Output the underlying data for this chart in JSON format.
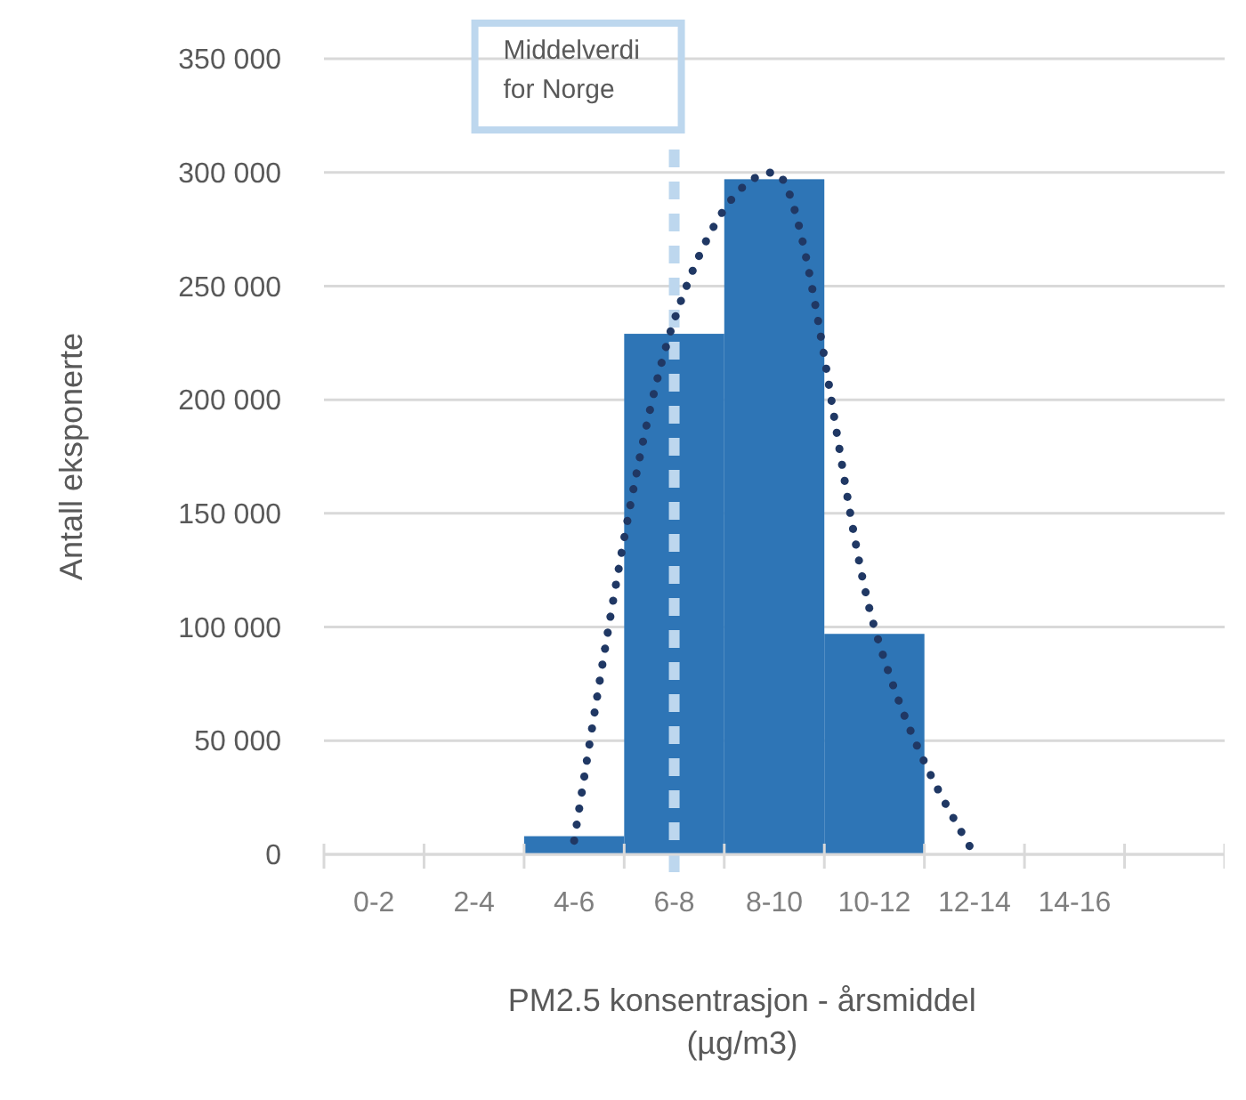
{
  "chart_data": {
    "type": "bar",
    "xlabel": "PM2.5 konsentrasjon - årsmiddel\n(µg/m3)",
    "ylabel": "Antall eksponerte",
    "categories": [
      "0-2",
      "2-4",
      "4-6",
      "6-8",
      "8-10",
      "10-12",
      "12-14",
      "14-16",
      null
    ],
    "series": [
      {
        "color": "#2e75b6",
        "values": [
          0,
          0,
          8000,
          229000,
          297000,
          97000,
          0,
          0,
          0
        ]
      },
      {
        "type": "line",
        "color": "#203864",
        "line_style": "dotted",
        "values": [
          null,
          null,
          6000,
          235000,
          300000,
          100000,
          0,
          null,
          null
        ]
      }
    ],
    "ylim": [
      0,
      350000
    ],
    "yticks": [
      {
        "value": 0,
        "label": "0"
      },
      {
        "value": 50000,
        "label": "50 000"
      },
      {
        "value": 100000,
        "label": "100 000"
      },
      {
        "value": 150000,
        "label": "150 000"
      },
      {
        "value": 200000,
        "label": "200 000"
      },
      {
        "value": 250000,
        "label": "250 000"
      },
      {
        "value": 300000,
        "label": "300 000"
      },
      {
        "value": 350000,
        "label": "350 000"
      }
    ],
    "grid": "y",
    "ref_lines": [
      {
        "axis": "x",
        "value": "6-8",
        "label": "Middelverdi\nfor Norge",
        "color": "#bdd7ee",
        "line_style": "dashed"
      }
    ]
  }
}
